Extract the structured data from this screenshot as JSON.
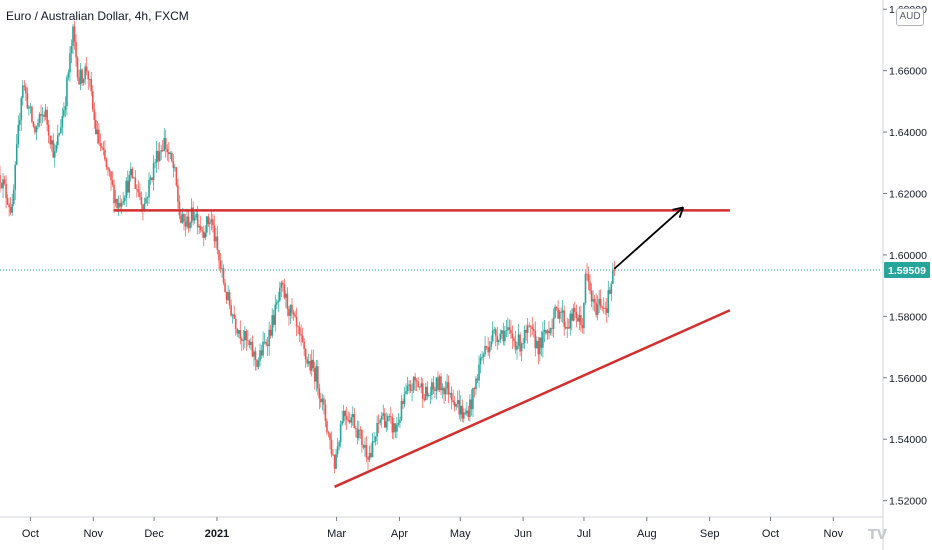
{
  "header": {
    "title": "Euro / Australian Dollar, 4h, FXCM",
    "currency": "AUD"
  },
  "colors": {
    "up": "#26a69a",
    "down": "#ef5350",
    "level_line": "#d32f2f",
    "arrow": "#000000",
    "price_line": "#26a69a",
    "badge_bg": "#26a69a",
    "axis_text": "#131722",
    "axis_border": "#d1d4dc"
  },
  "chart_data": {
    "type": "candlestick",
    "title": "Euro / Australian Dollar, 4h, FXCM",
    "xlim": [
      "2020-09-16",
      "2021-11-25"
    ],
    "ylim": [
      1.515,
      1.683
    ],
    "grid": false,
    "y_ticks": [
      "1.52000",
      "1.54000",
      "1.56000",
      "1.58000",
      "1.60000",
      "1.62000",
      "1.64000",
      "1.66000",
      "1.68000"
    ],
    "x_ticks": [
      {
        "label": "Oct",
        "date": "2020-10-01"
      },
      {
        "label": "Nov",
        "date": "2020-11-01"
      },
      {
        "label": "Dec",
        "date": "2020-12-01"
      },
      {
        "label": "2021",
        "date": "2021-01-01",
        "bold": true
      },
      {
        "label": "Mar",
        "date": "2021-03-01"
      },
      {
        "label": "Apr",
        "date": "2021-04-01"
      },
      {
        "label": "May",
        "date": "2021-05-01"
      },
      {
        "label": "Jun",
        "date": "2021-06-01"
      },
      {
        "label": "Jul",
        "date": "2021-07-01"
      },
      {
        "label": "Aug",
        "date": "2021-08-01"
      },
      {
        "label": "Sep",
        "date": "2021-09-01"
      },
      {
        "label": "Oct",
        "date": "2021-10-01"
      },
      {
        "label": "Nov",
        "date": "2021-11-01"
      }
    ],
    "last_price": "1.59509",
    "last_value": 1.59509,
    "path_points": [
      [
        "2020-09-16",
        1.626
      ],
      [
        "2020-09-22",
        1.614
      ],
      [
        "2020-09-27",
        1.657
      ],
      [
        "2020-10-03",
        1.64
      ],
      [
        "2020-10-08",
        1.647
      ],
      [
        "2020-10-13",
        1.632
      ],
      [
        "2020-10-18",
        1.65
      ],
      [
        "2020-10-22",
        1.672
      ],
      [
        "2020-10-25",
        1.657
      ],
      [
        "2020-10-29",
        1.661
      ],
      [
        "2020-11-02",
        1.641
      ],
      [
        "2020-11-08",
        1.627
      ],
      [
        "2020-11-13",
        1.616
      ],
      [
        "2020-11-20",
        1.626
      ],
      [
        "2020-11-26",
        1.616
      ],
      [
        "2020-12-02",
        1.632
      ],
      [
        "2020-12-06",
        1.637
      ],
      [
        "2020-12-11",
        1.627
      ],
      [
        "2020-12-14",
        1.611
      ],
      [
        "2020-12-17",
        1.61
      ],
      [
        "2020-12-21",
        1.614
      ],
      [
        "2020-12-25",
        1.608
      ],
      [
        "2020-12-29",
        1.612
      ],
      [
        "2021-01-02",
        1.598
      ],
      [
        "2021-01-06",
        1.586
      ],
      [
        "2021-01-11",
        1.577
      ],
      [
        "2021-01-16",
        1.571
      ],
      [
        "2021-01-21",
        1.565
      ],
      [
        "2021-01-27",
        1.575
      ],
      [
        "2021-02-02",
        1.589
      ],
      [
        "2021-02-08",
        1.578
      ],
      [
        "2021-02-14",
        1.566
      ],
      [
        "2021-02-19",
        1.561
      ],
      [
        "2021-02-24",
        1.545
      ],
      [
        "2021-02-28",
        1.532
      ],
      [
        "2021-03-04",
        1.549
      ],
      [
        "2021-03-09",
        1.547
      ],
      [
        "2021-03-15",
        1.537
      ],
      [
        "2021-03-18",
        1.535
      ],
      [
        "2021-03-23",
        1.548
      ],
      [
        "2021-03-30",
        1.543
      ],
      [
        "2021-04-04",
        1.554
      ],
      [
        "2021-04-09",
        1.559
      ],
      [
        "2021-04-15",
        1.554
      ],
      [
        "2021-04-20",
        1.558
      ],
      [
        "2021-04-26",
        1.556
      ],
      [
        "2021-05-03",
        1.547
      ],
      [
        "2021-05-07",
        1.553
      ],
      [
        "2021-05-11",
        1.566
      ],
      [
        "2021-05-17",
        1.574
      ],
      [
        "2021-05-23",
        1.575
      ],
      [
        "2021-05-30",
        1.571
      ],
      [
        "2021-06-04",
        1.575
      ],
      [
        "2021-06-09",
        1.57
      ],
      [
        "2021-06-14",
        1.577
      ],
      [
        "2021-06-19",
        1.583
      ],
      [
        "2021-06-22",
        1.577
      ],
      [
        "2021-06-27",
        1.581
      ],
      [
        "2021-06-30",
        1.576
      ],
      [
        "2021-07-02",
        1.594
      ],
      [
        "2021-07-06",
        1.582
      ],
      [
        "2021-07-09",
        1.585
      ],
      [
        "2021-07-12",
        1.583
      ],
      [
        "2021-07-16",
        1.595
      ]
    ],
    "annotations": {
      "resistance": {
        "x1": "2020-11-11",
        "x2": "2021-09-11",
        "y": 1.6145
      },
      "support": {
        "x1": "2021-02-28",
        "y1": 1.5245,
        "x2": "2021-09-11",
        "y2": 1.582
      },
      "arrow": {
        "x1": "2021-07-16",
        "y1": 1.5955,
        "x2": "2021-08-19",
        "y2": 1.6155
      }
    }
  }
}
